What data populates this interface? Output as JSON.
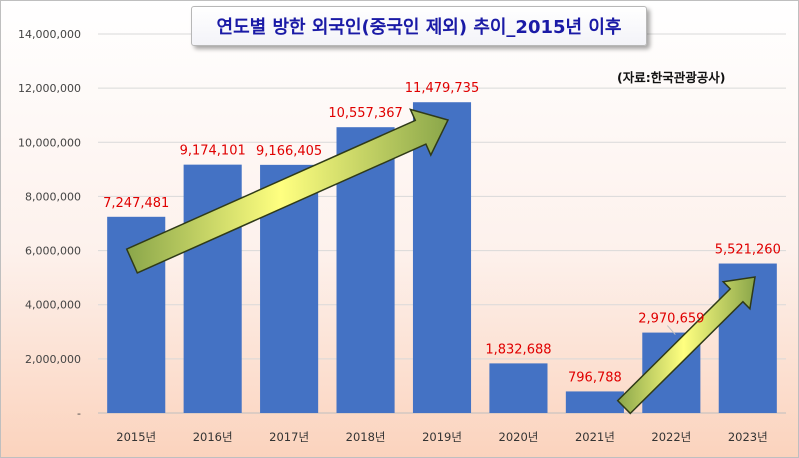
{
  "chart_data": {
    "type": "bar",
    "title": "연도별 방한 외국인(중국인 제외) 추이_2015년 이후",
    "source": "(자료:한국관광공사)",
    "categories": [
      "2015년",
      "2016년",
      "2017년",
      "2018년",
      "2019년",
      "2020년",
      "2021년",
      "2022년",
      "2023년"
    ],
    "values": [
      7247481,
      9174101,
      9166405,
      10557367,
      11479735,
      1832688,
      796788,
      2970659,
      5521260
    ],
    "data_labels": [
      "7,247,481",
      "9,174,101",
      "9,166,405",
      "10,557,367",
      "11,479,735",
      "1,832,688",
      "796,788",
      "2,970,659",
      "5,521,260"
    ],
    "ylim": [
      0,
      14000000
    ],
    "y_ticks": [
      0,
      2000000,
      4000000,
      6000000,
      8000000,
      10000000,
      12000000,
      14000000
    ],
    "y_tick_labels": [
      "-",
      "2,000,000",
      "4,000,000",
      "6,000,000",
      "8,000,000",
      "10,000,000",
      "12,000,000",
      "14,000,000"
    ],
    "xlabel": "",
    "ylabel": "",
    "grid": true,
    "legend": "none",
    "colors": {
      "bar": "#4472c4",
      "data_label": "#e00000",
      "title_text": "#1a1aa6",
      "arrow_fill_start": "#ffff80",
      "arrow_fill_end": "#8aa64a",
      "arrow_stroke": "#2f3a18"
    },
    "annotations": [
      {
        "type": "trend-arrow",
        "from_category": "2015년",
        "to_category": "2019년",
        "direction": "up"
      },
      {
        "type": "trend-arrow",
        "from_category": "2021년",
        "to_category": "2023년",
        "direction": "up"
      }
    ]
  }
}
